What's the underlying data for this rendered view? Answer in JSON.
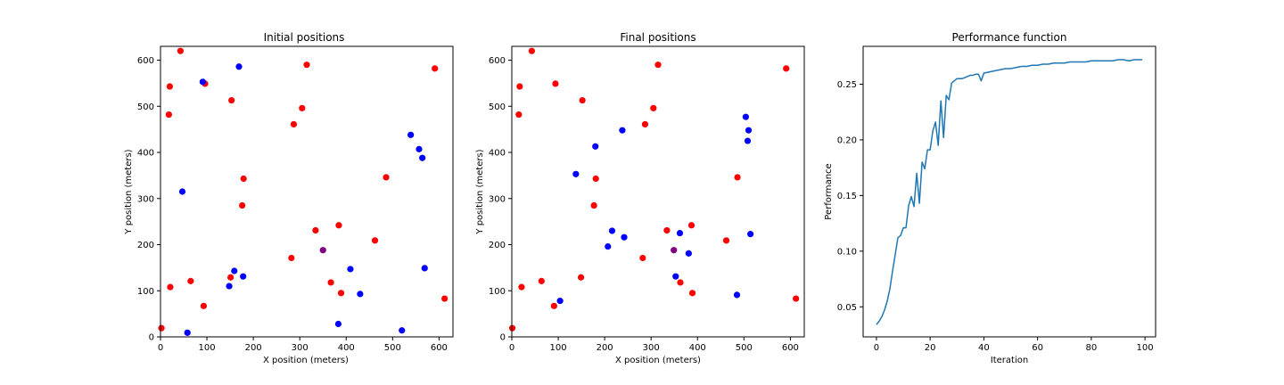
{
  "colors": {
    "red": "#ff0000",
    "blue": "#0000ff",
    "purple": "#800080",
    "line": "#1f77b4"
  },
  "chart_data": [
    {
      "type": "scatter",
      "title": "Initial positions",
      "xlabel": "X position (meters)",
      "ylabel": "Y position (meters)",
      "xlim": [
        0,
        630
      ],
      "ylim": [
        0,
        630
      ],
      "xticks": [
        0,
        100,
        200,
        300,
        400,
        500,
        600
      ],
      "yticks": [
        0,
        100,
        200,
        300,
        400,
        500,
        600
      ],
      "series": [
        {
          "color": "#ff0000",
          "points": [
            [
              43,
              620
            ],
            [
              20,
              543
            ],
            [
              18,
              482
            ],
            [
              96,
              549
            ],
            [
              153,
              513
            ],
            [
              315,
              590
            ],
            [
              305,
              496
            ],
            [
              287,
              461
            ],
            [
              591,
              582
            ],
            [
              486,
              346
            ],
            [
              179,
              343
            ],
            [
              176,
              285
            ],
            [
              384,
              242
            ],
            [
              334,
              231
            ],
            [
              462,
              209
            ],
            [
              282,
              171
            ],
            [
              151,
              129
            ],
            [
              21,
              108
            ],
            [
              65,
              121
            ],
            [
              367,
              118
            ],
            [
              389,
              95
            ],
            [
              612,
              83
            ],
            [
              93,
              67
            ],
            [
              2,
              19
            ]
          ]
        },
        {
          "color": "#0000ff",
          "points": [
            [
              91,
              553
            ],
            [
              169,
              586
            ],
            [
              47,
              315
            ],
            [
              539,
              438
            ],
            [
              557,
              407
            ],
            [
              564,
              388
            ],
            [
              159,
              143
            ],
            [
              178,
              131
            ],
            [
              148,
              110
            ],
            [
              409,
              147
            ],
            [
              569,
              149
            ],
            [
              430,
              93
            ],
            [
              383,
              28
            ],
            [
              58,
              9
            ],
            [
              520,
              14
            ]
          ]
        },
        {
          "color": "#800080",
          "points": [
            [
              350,
              188
            ]
          ]
        }
      ]
    },
    {
      "type": "scatter",
      "title": "Final positions",
      "xlabel": "X position (meters)",
      "ylabel": "Y position (meters)",
      "xlim": [
        0,
        630
      ],
      "ylim": [
        0,
        630
      ],
      "xticks": [
        0,
        100,
        200,
        300,
        400,
        500,
        600
      ],
      "yticks": [
        0,
        100,
        200,
        300,
        400,
        500,
        600
      ],
      "series": [
        {
          "color": "#ff0000",
          "points": [
            [
              43,
              620
            ],
            [
              17,
              543
            ],
            [
              15,
              482
            ],
            [
              94,
              549
            ],
            [
              152,
              513
            ],
            [
              315,
              590
            ],
            [
              305,
              496
            ],
            [
              287,
              461
            ],
            [
              591,
              582
            ],
            [
              486,
              346
            ],
            [
              181,
              343
            ],
            [
              177,
              285
            ],
            [
              387,
              242
            ],
            [
              334,
              231
            ],
            [
              462,
              209
            ],
            [
              282,
              171
            ],
            [
              149,
              129
            ],
            [
              21,
              108
            ],
            [
              64,
              121
            ],
            [
              363,
              118
            ],
            [
              389,
              95
            ],
            [
              612,
              83
            ],
            [
              91,
              67
            ],
            [
              1,
              19
            ]
          ]
        },
        {
          "color": "#0000ff",
          "points": [
            [
              504,
              477
            ],
            [
              510,
              448
            ],
            [
              508,
              425
            ],
            [
              238,
              448
            ],
            [
              180,
              413
            ],
            [
              138,
              353
            ],
            [
              216,
              230
            ],
            [
              207,
              196
            ],
            [
              242,
              216
            ],
            [
              362,
              225
            ],
            [
              514,
              223
            ],
            [
              381,
              181
            ],
            [
              353,
              131
            ],
            [
              104,
              78
            ],
            [
              485,
              91
            ]
          ]
        },
        {
          "color": "#800080",
          "points": [
            [
              349,
              188
            ]
          ]
        }
      ]
    },
    {
      "type": "line",
      "title": "Performance function",
      "xlabel": "Iteration",
      "ylabel": "Performance",
      "xlim": [
        -4.95,
        103.95
      ],
      "ylim": [
        0.023,
        0.284
      ],
      "xticks": [
        0,
        20,
        40,
        60,
        80,
        100
      ],
      "yticks": [
        0.05,
        0.1,
        0.15,
        0.2,
        0.25
      ],
      "series": [
        {
          "color": "#1f77b4",
          "x": [
            0,
            1,
            2,
            3,
            4,
            5,
            6,
            7,
            8,
            9,
            10,
            11,
            12,
            13,
            14,
            15,
            16,
            17,
            18,
            19,
            20,
            21,
            22,
            23,
            24,
            25,
            26,
            27,
            28,
            29,
            30,
            31,
            32,
            33,
            34,
            35,
            36,
            37,
            38,
            39,
            40,
            42,
            44,
            46,
            48,
            50,
            52,
            54,
            56,
            58,
            60,
            62,
            64,
            66,
            68,
            70,
            72,
            74,
            76,
            78,
            80,
            82,
            84,
            86,
            88,
            90,
            92,
            94,
            96,
            98,
            99
          ],
          "y": [
            0.034,
            0.037,
            0.041,
            0.047,
            0.055,
            0.066,
            0.082,
            0.097,
            0.112,
            0.114,
            0.121,
            0.121,
            0.141,
            0.149,
            0.14,
            0.17,
            0.143,
            0.18,
            0.174,
            0.191,
            0.191,
            0.208,
            0.216,
            0.195,
            0.235,
            0.202,
            0.24,
            0.236,
            0.251,
            0.253,
            0.255,
            0.255,
            0.255,
            0.256,
            0.257,
            0.258,
            0.258,
            0.259,
            0.259,
            0.253,
            0.26,
            0.261,
            0.262,
            0.263,
            0.264,
            0.264,
            0.265,
            0.266,
            0.266,
            0.267,
            0.267,
            0.268,
            0.268,
            0.269,
            0.269,
            0.269,
            0.27,
            0.27,
            0.27,
            0.27,
            0.271,
            0.271,
            0.271,
            0.271,
            0.271,
            0.272,
            0.272,
            0.271,
            0.272,
            0.272,
            0.272
          ]
        }
      ]
    }
  ]
}
